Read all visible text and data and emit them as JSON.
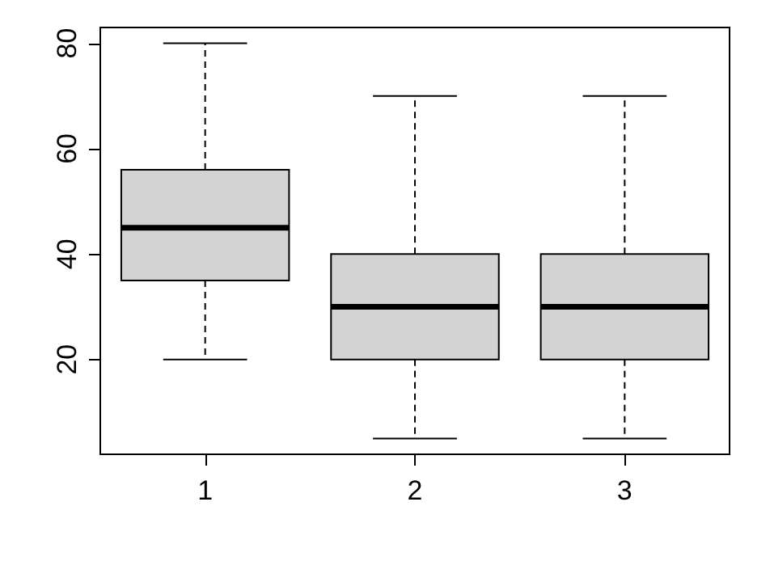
{
  "chart_data": {
    "type": "box",
    "categories": [
      "1",
      "2",
      "3"
    ],
    "color": "#d3d3d3",
    "boxes": [
      {
        "low": 20,
        "q1": 35,
        "median": 45,
        "q3": 56,
        "high": 80
      },
      {
        "low": 5,
        "q1": 20,
        "median": 30,
        "q3": 40,
        "high": 70
      },
      {
        "low": 5,
        "q1": 20,
        "median": 30,
        "q3": 40,
        "high": 70
      }
    ],
    "ylim": [
      2,
      83
    ],
    "yticks": [
      20,
      40,
      60,
      80
    ],
    "grid": false
  }
}
